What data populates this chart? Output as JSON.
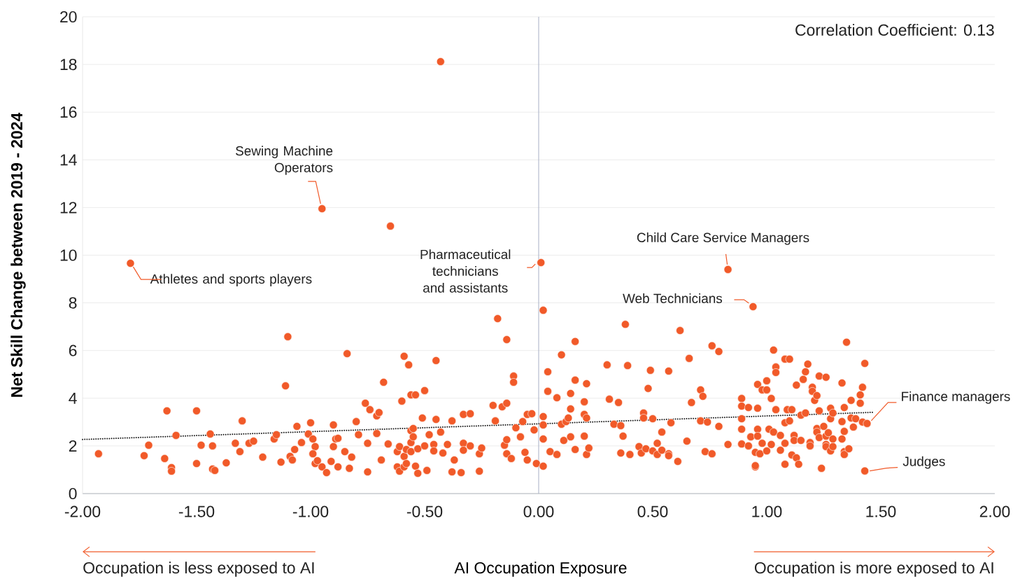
{
  "chart_data": {
    "type": "scatter",
    "ylabel": "Net Skill Change between 2019 - 2024",
    "xlabel": "AI Occupation Exposure",
    "xlim": [
      -2,
      2
    ],
    "ylim": [
      0,
      20
    ],
    "xticks": [
      {
        "value": -2,
        "label": "-2.00"
      },
      {
        "value": -1.5,
        "label": "-1.50"
      },
      {
        "value": -1,
        "label": "-1.00"
      },
      {
        "value": -0.5,
        "label": "-0.50"
      },
      {
        "value": 0,
        "label": "0.00"
      },
      {
        "value": 0.5,
        "label": "0.50"
      },
      {
        "value": 1,
        "label": "1.00"
      },
      {
        "value": 1.5,
        "label": "1.50"
      },
      {
        "value": 2,
        "label": "2.00"
      }
    ],
    "yticks": [
      0,
      2,
      4,
      6,
      8,
      10,
      12,
      14,
      16,
      18,
      20
    ],
    "grid": "y",
    "marker": "circle",
    "ref_lines": [
      {
        "axis": "x",
        "value": 0,
        "color": "#a7afc4"
      }
    ],
    "annotations": [
      {
        "text": "Athletes and sports players",
        "x": -1.79,
        "y": 9.66
      },
      {
        "text": "Sewing Machine Operators",
        "x": -0.95,
        "y": 11.95
      },
      {
        "text": "Pharmaceutical technicians and assistants",
        "x": 0.01,
        "y": 9.69
      },
      {
        "text": "Child Care Service Managers",
        "x": 0.83,
        "y": 9.4
      },
      {
        "text": "Web Technicians",
        "x": 0.94,
        "y": 7.84
      },
      {
        "text": "Finance managers",
        "x": 1.44,
        "y": 2.94
      },
      {
        "text": "Judges",
        "x": 1.43,
        "y": 0.95
      },
      "Correlation Coefficient: 0.13",
      "Occupation is less exposed to AI",
      "Occupation is more exposed to AI"
    ],
    "series": [
      {
        "color": "#f15a29",
        "x": [
          -1.93,
          -1.79,
          -1.73,
          -1.71,
          -1.64,
          -1.63,
          -1.61,
          -1.61,
          -1.59,
          -1.5,
          -1.5,
          -1.48,
          -1.44,
          -1.43,
          -1.43,
          -1.42,
          -1.37,
          -1.33,
          -1.31,
          -1.3,
          -1.27,
          -1.25,
          -1.21,
          -1.16,
          -1.15,
          -1.13,
          -1.11,
          -1.1,
          -1.09,
          -1.08,
          -1.07,
          -1.06,
          -1.04,
          -1.01,
          -1.0,
          -0.99,
          -0.98,
          -0.98,
          -0.95,
          -0.99,
          -0.97,
          -0.95,
          -0.93,
          -0.91,
          -0.9,
          -0.9,
          -0.89,
          -0.88,
          -0.88,
          -0.85,
          -0.84,
          -0.83,
          -0.82,
          -0.8,
          -0.79,
          -0.76,
          -0.75,
          -0.75,
          -0.74,
          -0.71,
          -0.71,
          -0.7,
          -0.69,
          -0.68,
          -0.66,
          -0.65,
          -0.62,
          -0.62,
          -0.61,
          -0.61,
          -0.6,
          -0.59,
          -0.59,
          -0.59,
          -0.58,
          -0.58,
          -0.57,
          -0.56,
          -0.56,
          -0.56,
          -0.56,
          -0.55,
          -0.55,
          -0.54,
          -0.54,
          -0.53,
          -0.53,
          -0.51,
          -0.5,
          -0.5,
          -0.49,
          -0.48,
          -0.46,
          -0.46,
          -0.45,
          -0.45,
          -0.43,
          -0.43,
          -0.42,
          -0.4,
          -0.38,
          -0.38,
          -0.37,
          -0.34,
          -0.33,
          -0.33,
          -0.33,
          -0.3,
          -0.3,
          -0.26,
          -0.26,
          -0.25,
          -0.2,
          -0.19,
          -0.18,
          -0.16,
          -0.15,
          -0.14,
          -0.14,
          -0.14,
          -0.14,
          -0.12,
          -0.11,
          -0.11,
          -0.1,
          -0.08,
          -0.07,
          -0.06,
          -0.05,
          -0.05,
          -0.03,
          -0.02,
          -0.01,
          0.01,
          0.02,
          0.02,
          0.02,
          0.02,
          0.02,
          0.04,
          0.04,
          0.05,
          0.08,
          0.08,
          0.1,
          0.1,
          0.11,
          0.12,
          0.13,
          0.14,
          0.14,
          0.14,
          0.16,
          0.16,
          0.16,
          0.2,
          0.2,
          0.2,
          0.21,
          0.21,
          0.21,
          0.22,
          0.3,
          0.31,
          0.33,
          0.35,
          0.36,
          0.36,
          0.37,
          0.38,
          0.39,
          0.4,
          0.44,
          0.45,
          0.46,
          0.46,
          0.47,
          0.48,
          0.49,
          0.5,
          0.5,
          0.52,
          0.52,
          0.54,
          0.54,
          0.57,
          0.57,
          0.57,
          0.58,
          0.61,
          0.62,
          0.65,
          0.66,
          0.67,
          0.71,
          0.71,
          0.72,
          0.73,
          0.74,
          0.76,
          0.76,
          0.79,
          0.79,
          0.83,
          0.83,
          0.89,
          0.94,
          0.89,
          0.89,
          0.89,
          0.89,
          0.92,
          0.92,
          0.93,
          0.95,
          0.95,
          0.95,
          0.96,
          0.96,
          0.96,
          0.96,
          0.97,
          0.98,
          0.98,
          1.0,
          1.0,
          1.0,
          1.01,
          1.02,
          1.02,
          1.03,
          1.03,
          1.04,
          1.04,
          1.04,
          1.06,
          1.06,
          1.08,
          1.08,
          1.08,
          1.08,
          1.09,
          1.1,
          1.1,
          1.11,
          1.11,
          1.12,
          1.12,
          1.13,
          1.13,
          1.14,
          1.15,
          1.15,
          1.16,
          1.17,
          1.17,
          1.18,
          1.19,
          1.19,
          1.2,
          1.2,
          1.21,
          1.22,
          1.22,
          1.22,
          1.23,
          1.23,
          1.23,
          1.24,
          1.25,
          1.26,
          1.26,
          1.26,
          1.26,
          1.27,
          1.28,
          1.28,
          1.28,
          1.29,
          1.29,
          1.29,
          1.33,
          1.33,
          1.33,
          1.34,
          1.34,
          1.34,
          1.34,
          1.35,
          1.36,
          1.37,
          1.37,
          1.38,
          1.39,
          1.41,
          1.41,
          1.42,
          1.42,
          1.43,
          1.43,
          1.44
        ],
        "values": [
          1.67,
          9.66,
          1.59,
          2.03,
          1.47,
          3.47,
          1.09,
          0.94,
          2.44,
          3.47,
          1.26,
          2.03,
          2.5,
          2.0,
          1.03,
          0.97,
          1.29,
          2.11,
          1.76,
          3.05,
          2.11,
          2.2,
          1.53,
          2.29,
          2.47,
          1.32,
          4.52,
          6.58,
          1.56,
          1.41,
          1.85,
          2.82,
          2.14,
          2.5,
          2.97,
          2.29,
          1.26,
          1.97,
          11.95,
          1.67,
          1.38,
          1.12,
          0.88,
          1.35,
          2.88,
          1.97,
          2.29,
          2.32,
          1.12,
          1.76,
          5.87,
          1.06,
          1.53,
          3.02,
          2.47,
          3.79,
          2.11,
          0.91,
          3.52,
          3.26,
          2.52,
          3.4,
          1.41,
          4.67,
          2.08,
          11.22,
          1.12,
          1.76,
          0.94,
          1.97,
          3.88,
          5.76,
          1.12,
          1.56,
          1.26,
          1.85,
          5.4,
          4.14,
          1.76,
          2.14,
          2.64,
          2.38,
          2.73,
          4.14,
          1.15,
          0.85,
          1.88,
          3.17,
          4.32,
          2.0,
          0.97,
          2.47,
          2.06,
          1.79,
          5.58,
          3.11,
          18.12,
          2.58,
          1.7,
          2.06,
          3.05,
          0.91,
          1.41,
          0.88,
          3.32,
          2.11,
          1.82,
          3.35,
          2.0,
          1.67,
          0.94,
          1.91,
          3.7,
          3.05,
          7.34,
          3.64,
          2.03,
          6.46,
          3.79,
          2.26,
          1.67,
          1.47,
          4.93,
          4.67,
          2.76,
          2.38,
          3.02,
          1.73,
          3.32,
          1.41,
          3.35,
          2.67,
          1.26,
          9.69,
          7.69,
          3.23,
          2.88,
          2.29,
          1.15,
          5.11,
          4.29,
          1.76,
          4.02,
          1.64,
          5.82,
          2.91,
          2.23,
          3.02,
          3.17,
          4.2,
          3.55,
          2.38,
          6.38,
          4.76,
          1.85,
          3.85,
          3.32,
          2.41,
          4.61,
          3.17,
          1.64,
          1.91,
          5.4,
          3.96,
          2.91,
          3.82,
          2.85,
          1.7,
          2.41,
          7.1,
          5.37,
          1.64,
          1.97,
          1.7,
          3.38,
          3.17,
          1.88,
          4.41,
          5.17,
          3.14,
          1.79,
          2.11,
          1.64,
          2.58,
          1.82,
          5.14,
          1.67,
          1.59,
          2.97,
          1.35,
          6.84,
          2.2,
          5.67,
          3.82,
          4.35,
          3.05,
          4.08,
          1.76,
          3.0,
          6.2,
          1.67,
          5.96,
          2.82,
          9.4,
          2.06,
          2.08,
          7.84,
          3.99,
          3.67,
          3.14,
          2.7,
          3.61,
          2.0,
          2.38,
          1.12,
          1.17,
          1.73,
          4.58,
          3.58,
          2.7,
          2.41,
          1.67,
          4.35,
          2.11,
          4.73,
          4.35,
          1.79,
          2.7,
          3.99,
          2.06,
          6.02,
          2.58,
          5.31,
          5.08,
          3.52,
          2.44,
          1.82,
          5.64,
          2.97,
          2.11,
          1.23,
          3.52,
          5.64,
          3.05,
          3.52,
          1.62,
          2.44,
          2.23,
          4.55,
          1.5,
          1.23,
          3.29,
          2.23,
          4.79,
          5.11,
          3.38,
          5.43,
          2.14,
          2.0,
          4.46,
          4.29,
          3.91,
          4.11,
          2.73,
          2.58,
          4.93,
          3.47,
          2.35,
          1.06,
          2.82,
          4.88,
          2.41,
          2.06,
          1.97,
          2.55,
          3.58,
          3.14,
          1.79,
          3.38,
          2.29,
          1.97,
          4.64,
          3.02,
          2.29,
          3.61,
          2.61,
          1.76,
          1.64,
          6.35,
          1.88,
          3.91,
          3.17,
          2.79,
          3.14,
          4.14,
          3.79,
          4.46,
          3.0,
          5.46,
          0.95,
          2.94
        ]
      },
      {
        "type": "line",
        "color": "#1a1a1a",
        "line_style": "dotted",
        "marker": "none",
        "x": [
          -2,
          1.47
        ],
        "values": [
          2.27,
          3.41
        ]
      }
    ]
  }
}
